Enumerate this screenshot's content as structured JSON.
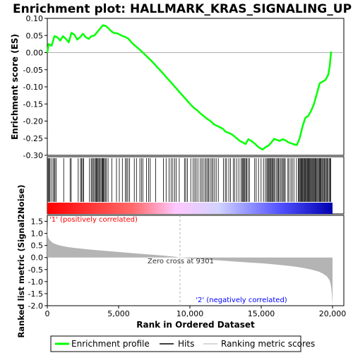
{
  "chart_data": {
    "type": "line",
    "title": "Enrichment plot: HALLMARK_KRAS_SIGNALING_UP",
    "x_range": [
      0,
      20000
    ],
    "x_ticks": [
      0,
      5000,
      10000,
      15000,
      20000
    ],
    "x_tick_labels": [
      "0",
      "5,000",
      "10,000",
      "15,000",
      "20,000"
    ],
    "xlabel": "Rank in Ordered Dataset",
    "es_panel": {
      "ylabel": "Enrichment score (ES)",
      "ylim": [
        -0.3,
        0.1
      ],
      "y_ticks": [
        0.1,
        0.05,
        0.0,
        -0.05,
        -0.1,
        -0.15,
        -0.2,
        -0.25,
        -0.3
      ],
      "y_tick_labels": [
        "0.10",
        "0.05",
        "0.00",
        "-0.05",
        "-0.10",
        "-0.15",
        "-0.20",
        "-0.25",
        "-0.30"
      ],
      "line_color": "#00ff00",
      "series": [
        {
          "name": "Enrichment profile",
          "x": [
            0,
            100,
            300,
            500,
            700,
            900,
            1100,
            1300,
            1500,
            1700,
            1900,
            2100,
            2300,
            2500,
            2700,
            2900,
            3100,
            3300,
            3500,
            3700,
            3900,
            4100,
            4300,
            4500,
            4700,
            4900,
            5100,
            5300,
            5500,
            5700,
            5900,
            6100,
            6300,
            6500,
            6700,
            6900,
            7100,
            7300,
            7500,
            7700,
            7900,
            8100,
            8300,
            8500,
            8700,
            8900,
            9100,
            9301,
            9500,
            9700,
            9900,
            10100,
            10300,
            10500,
            10700,
            10900,
            11100,
            11300,
            11500,
            11700,
            11900,
            12100,
            12300,
            12500,
            12700,
            12900,
            13100,
            13300,
            13500,
            13700,
            13900,
            14100,
            14300,
            14500,
            14700,
            14900,
            15100,
            15300,
            15500,
            15700,
            15900,
            16100,
            16300,
            16500,
            16700,
            16900,
            17100,
            17300,
            17500,
            17700,
            17900,
            18100,
            18300,
            18500,
            18700,
            18900,
            19100,
            19300,
            19500,
            19700,
            19800,
            19900
          ],
          "y": [
            0.0,
            0.025,
            0.02,
            0.048,
            0.045,
            0.035,
            0.048,
            0.04,
            0.03,
            0.058,
            0.052,
            0.038,
            0.045,
            0.055,
            0.045,
            0.04,
            0.048,
            0.05,
            0.06,
            0.07,
            0.08,
            0.078,
            0.07,
            0.062,
            0.057,
            0.056,
            0.052,
            0.048,
            0.045,
            0.04,
            0.03,
            0.022,
            0.015,
            0.008,
            0.0,
            -0.008,
            -0.016,
            -0.024,
            -0.033,
            -0.042,
            -0.051,
            -0.06,
            -0.07,
            -0.079,
            -0.088,
            -0.098,
            -0.107,
            -0.117,
            -0.126,
            -0.135,
            -0.145,
            -0.154,
            -0.162,
            -0.168,
            -0.176,
            -0.183,
            -0.19,
            -0.196,
            -0.202,
            -0.21,
            -0.214,
            -0.218,
            -0.222,
            -0.231,
            -0.234,
            -0.238,
            -0.244,
            -0.251,
            -0.258,
            -0.262,
            -0.267,
            -0.253,
            -0.258,
            -0.264,
            -0.272,
            -0.279,
            -0.283,
            -0.276,
            -0.272,
            -0.263,
            -0.252,
            -0.255,
            -0.258,
            -0.253,
            -0.256,
            -0.262,
            -0.265,
            -0.268,
            -0.27,
            -0.25,
            -0.215,
            -0.19,
            -0.185,
            -0.17,
            -0.15,
            -0.12,
            -0.09,
            -0.085,
            -0.08,
            -0.065,
            -0.04,
            0.003
          ]
        }
      ]
    },
    "hits_panel": {
      "series_name": "Hits",
      "hit_positions": [
        60,
        110,
        170,
        260,
        390,
        470,
        540,
        620,
        1150,
        1600,
        1680,
        2170,
        2330,
        2400,
        2480,
        2550,
        2960,
        3080,
        3160,
        3230,
        3310,
        3380,
        3440,
        3500,
        3560,
        3620,
        3690,
        3760,
        3830,
        3880,
        3940,
        4000,
        4070,
        4150,
        4260,
        4520,
        4850,
        5050,
        5260,
        5470,
        5560,
        5650,
        5770,
        6100,
        6250,
        6490,
        6600,
        6700,
        6950,
        7100,
        7220,
        7600,
        8150,
        8330,
        8540,
        8680,
        8800,
        8940,
        9050,
        9250,
        9620,
        9710,
        9830,
        10060,
        10230,
        10340,
        10440,
        10560,
        10720,
        10830,
        10930,
        11050,
        11140,
        11240,
        11300,
        11420,
        11530,
        11620,
        11730,
        11840,
        11990,
        12350,
        12480,
        12570,
        12730,
        12850,
        13040,
        13140,
        13280,
        13430,
        13580,
        13670,
        13720,
        13790,
        13850,
        13920,
        13990,
        14080,
        14180,
        14540,
        14650,
        14810,
        14990,
        15160,
        15290,
        15390,
        15450,
        15510,
        15590,
        15640,
        15700,
        15760,
        15830,
        15890,
        15970,
        16080,
        16150,
        16220,
        16290,
        16380,
        16470,
        16540,
        16610,
        16690,
        16870,
        16940,
        17080,
        17180,
        17290,
        17470,
        17600,
        17660,
        17720,
        17770,
        17820,
        17870,
        17920,
        17980,
        18030,
        18080,
        18130,
        18180,
        18240,
        18290,
        18340,
        18400,
        18440,
        18510,
        18560,
        18620,
        18670,
        18730,
        18790,
        18840,
        18900,
        18960,
        19020,
        19080,
        19140,
        19190,
        19250,
        19300,
        19370,
        19430,
        19500,
        19560,
        19620,
        19690,
        19760,
        19820,
        19870
      ]
    },
    "metric_panel": {
      "series_name": "Ranking metric scores",
      "ylabel": "Ranked list metric (Signal2Noise)",
      "ylim": [
        -2.0,
        1.75
      ],
      "y_ticks": [
        1.5,
        1.0,
        0.5,
        0.0,
        -0.5,
        -1.0,
        -1.5,
        -2.0
      ],
      "y_tick_labels": [
        "1.5",
        "1.0",
        "0.5",
        "0.0",
        "-0.5",
        "-1.0",
        "-1.5",
        "-2.0"
      ],
      "x": [
        0,
        30,
        100,
        200,
        400,
        700,
        1000,
        1500,
        2000,
        3000,
        4000,
        5000,
        6000,
        7000,
        8000,
        9000,
        9301,
        10000,
        11000,
        12000,
        13000,
        14000,
        15000,
        16000,
        17000,
        17500,
        18000,
        18500,
        19000,
        19300,
        19600,
        19800,
        19900,
        19950,
        20000
      ],
      "y": [
        1.55,
        0.9,
        0.78,
        0.7,
        0.6,
        0.53,
        0.48,
        0.43,
        0.39,
        0.33,
        0.28,
        0.23,
        0.18,
        0.13,
        0.09,
        0.03,
        0.0,
        -0.04,
        -0.08,
        -0.12,
        -0.16,
        -0.2,
        -0.24,
        -0.29,
        -0.35,
        -0.39,
        -0.44,
        -0.5,
        -0.58,
        -0.66,
        -0.78,
        -0.95,
        -1.2,
        -1.5,
        -1.95
      ],
      "zero_cross_rank": 9301,
      "zero_cross_label": "Zero cross at 9301",
      "positive_label": "'1' (positively correlated)",
      "negative_label": "'2' (negatively correlated)",
      "positive_color": "#ff0000",
      "negative_color": "#0000ff"
    },
    "legend": {
      "placement": "bottom",
      "entries": [
        "Enrichment profile",
        "Hits",
        "Ranking metric scores"
      ]
    }
  }
}
